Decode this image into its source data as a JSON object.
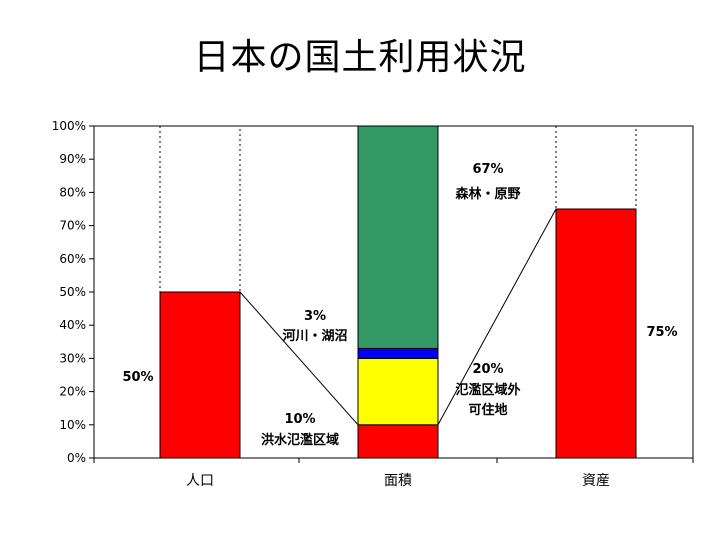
{
  "title": "日本の国土利用状況",
  "chart_data": {
    "type": "bar",
    "categories": [
      "人口",
      "面積",
      "資産"
    ],
    "ylim": [
      0,
      100
    ],
    "ytick_labels": [
      "0%",
      "10%",
      "20%",
      "30%",
      "40%",
      "50%",
      "60%",
      "70%",
      "80%",
      "90%",
      "100%"
    ],
    "grid": false,
    "series": [
      {
        "name": "洪水氾濫区域",
        "color": "#ff0000",
        "values": [
          50,
          10,
          75
        ]
      },
      {
        "name": "氾濫区域外可住地",
        "color": "#ffff00",
        "values": [
          null,
          20,
          null
        ]
      },
      {
        "name": "河川・湖沼",
        "color": "#0000ff",
        "values": [
          null,
          3,
          null
        ]
      },
      {
        "name": "森林・原野",
        "color": "#339966",
        "values": [
          null,
          67,
          null
        ]
      }
    ],
    "annotations": {
      "pop_pct": "50%",
      "flood_pct": "10%",
      "flood_label": "洪水氾濫区域",
      "outside_pct": "20%",
      "outside_label_1": "氾濫区域外",
      "outside_label_2": "可住地",
      "river_pct": "3%",
      "river_label": "河川・湖沼",
      "forest_pct": "67%",
      "forest_label": "森林・原野",
      "asset_pct": "75%"
    }
  }
}
